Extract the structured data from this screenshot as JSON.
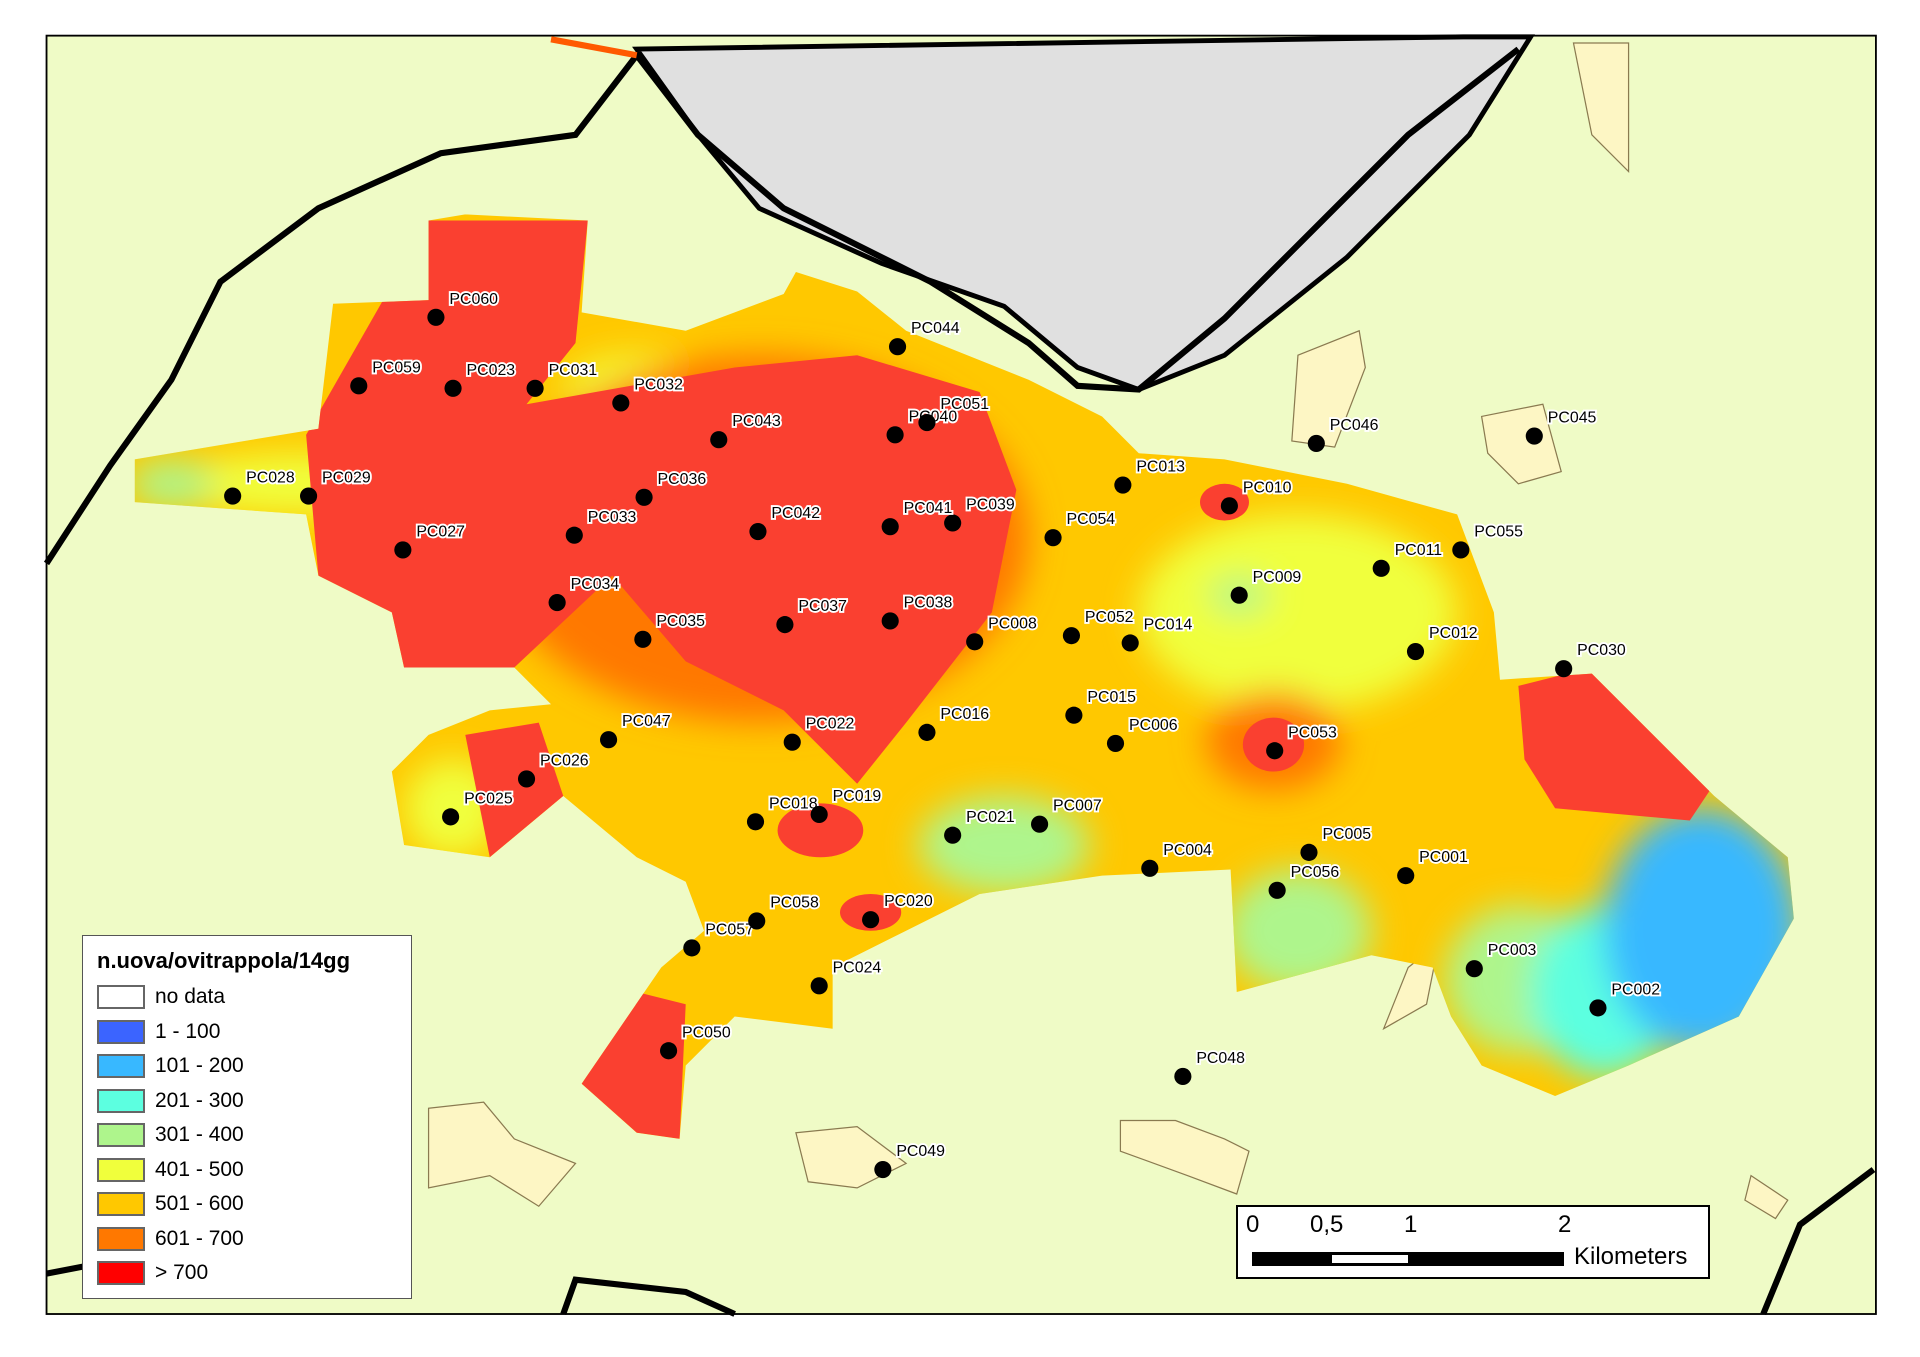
{
  "legend": {
    "title": "n.uova/ovitrappola/14gg",
    "classes": [
      {
        "label": "no data",
        "color": "#ffffff"
      },
      {
        "label": "1 - 100",
        "color": "#3b64ff"
      },
      {
        "label": "101 - 200",
        "color": "#38b8ff"
      },
      {
        "label": "201 - 300",
        "color": "#5cffe0"
      },
      {
        "label": "301 - 400",
        "color": "#aef58c"
      },
      {
        "label": "401 - 500",
        "color": "#f0ff3c"
      },
      {
        "label": "501 - 600",
        "color": "#ffc800"
      },
      {
        "label": "601 - 700",
        "color": "#ff7800"
      },
      {
        "label": "> 700",
        "color": "#ff0000"
      }
    ]
  },
  "scale_bar": {
    "ticks": [
      "0",
      "0,5",
      "1",
      "2"
    ],
    "unit": "Kilometers"
  },
  "colors": {
    "background": "#effbc6",
    "water": "#e0e0e0",
    "settlements": "#fdf6c4",
    "boundary": "#000000"
  },
  "traps": [
    "PC001",
    "PC002",
    "PC003",
    "PC004",
    "PC005",
    "PC006",
    "PC007",
    "PC008",
    "PC009",
    "PC010",
    "PC011",
    "PC012",
    "PC013",
    "PC014",
    "PC015",
    "PC016",
    "PC018",
    "PC019",
    "PC020",
    "PC021",
    "PC022",
    "PC023",
    "PC024",
    "PC025",
    "PC026",
    "PC027",
    "PC028",
    "PC029",
    "PC030",
    "PC031",
    "PC032",
    "PC033",
    "PC034",
    "PC035",
    "PC036",
    "PC037",
    "PC038",
    "PC039",
    "PC040",
    "PC041",
    "PC042",
    "PC043",
    "PC044",
    "PC045",
    "PC046",
    "PC047",
    "PC048",
    "PC049",
    "PC050",
    "PC051",
    "PC052",
    "PC053",
    "PC054",
    "PC055",
    "PC056",
    "PC057",
    "PC058",
    "PC059",
    "PC060"
  ]
}
